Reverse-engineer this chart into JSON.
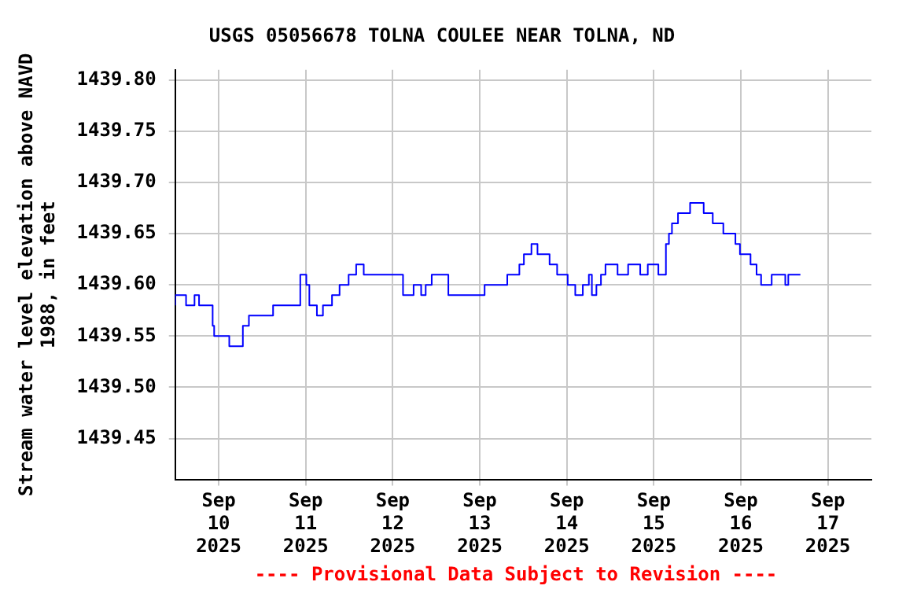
{
  "chart_data": {
    "type": "step",
    "title": "USGS 05056678 TOLNA COULEE NEAR TOLNA, ND",
    "ylabel": "Stream water level elevation above NAVD 1988, in feet",
    "annotations": [
      "---- Provisional Data Subject to Revision ----"
    ],
    "x": [
      "2025-09-09T12:00",
      "2025-09-09T15:00",
      "2025-09-09T17:20",
      "2025-09-09T18:35",
      "2025-09-09T22:20",
      "2025-09-09T22:45",
      "2025-09-10T02:55",
      "2025-09-10T06:40",
      "2025-09-10T08:20",
      "2025-09-10T15:00",
      "2025-09-10T22:30",
      "2025-09-11T00:10",
      "2025-09-11T01:00",
      "2025-09-11T03:05",
      "2025-09-11T04:45",
      "2025-09-11T07:15",
      "2025-09-11T09:20",
      "2025-09-11T11:50",
      "2025-09-11T13:55",
      "2025-09-11T16:00",
      "2025-09-12T02:50",
      "2025-09-12T05:45",
      "2025-09-12T07:50",
      "2025-09-12T09:05",
      "2025-09-12T10:45",
      "2025-09-12T15:20",
      "2025-09-13T01:20",
      "2025-09-13T07:35",
      "2025-09-13T10:55",
      "2025-09-13T12:10",
      "2025-09-13T14:15",
      "2025-09-13T15:55",
      "2025-09-13T19:15",
      "2025-09-13T21:20",
      "2025-09-14T00:15",
      "2025-09-14T02:20",
      "2025-09-14T04:25",
      "2025-09-14T06:05",
      "2025-09-14T06:55",
      "2025-09-14T08:10",
      "2025-09-14T09:25",
      "2025-09-14T10:40",
      "2025-09-14T14:00",
      "2025-09-14T16:55",
      "2025-09-14T20:15",
      "2025-09-14T22:20",
      "2025-09-15T01:15",
      "2025-09-15T03:20",
      "2025-09-15T04:10",
      "2025-09-15T05:00",
      "2025-09-15T06:40",
      "2025-09-15T10:00",
      "2025-09-15T13:45",
      "2025-09-15T16:15",
      "2025-09-15T19:10",
      "2025-09-15T22:30",
      "2025-09-15T23:45",
      "2025-09-16T02:40",
      "2025-09-16T04:20",
      "2025-09-16T05:35",
      "2025-09-16T08:30",
      "2025-09-16T12:15",
      "2025-09-16T13:05",
      "2025-09-16T15:10",
      "2025-09-16T16:25"
    ],
    "series": [
      {
        "color": "#0000ff",
        "values": [
          1439.58,
          1439.59,
          1439.58,
          1439.59,
          1439.58,
          1439.56,
          1439.55,
          1439.54,
          1439.56,
          1439.57,
          1439.58,
          1439.61,
          1439.6,
          1439.58,
          1439.57,
          1439.58,
          1439.59,
          1439.6,
          1439.61,
          1439.62,
          1439.61,
          1439.59,
          1439.6,
          1439.59,
          1439.6,
          1439.61,
          1439.59,
          1439.6,
          1439.61,
          1439.62,
          1439.63,
          1439.64,
          1439.63,
          1439.62,
          1439.61,
          1439.6,
          1439.59,
          1439.6,
          1439.61,
          1439.59,
          1439.6,
          1439.61,
          1439.62,
          1439.61,
          1439.62,
          1439.61,
          1439.62,
          1439.61,
          1439.64,
          1439.65,
          1439.66,
          1439.67,
          1439.68,
          1439.67,
          1439.66,
          1439.65,
          1439.64,
          1439.63,
          1439.62,
          1439.61,
          1439.6,
          1439.61,
          1439.6,
          1439.61,
          1439.61
        ]
      }
    ],
    "xlim": [
      "2025-09-09T12:00",
      "2025-09-17T12:00"
    ],
    "xticks": [
      {
        "value": "2025-09-10",
        "label": "Sep\n10\n2025"
      },
      {
        "value": "2025-09-11",
        "label": "Sep\n11\n2025"
      },
      {
        "value": "2025-09-12",
        "label": "Sep\n12\n2025"
      },
      {
        "value": "2025-09-13",
        "label": "Sep\n13\n2025"
      },
      {
        "value": "2025-09-14",
        "label": "Sep\n14\n2025"
      },
      {
        "value": "2025-09-15",
        "label": "Sep\n15\n2025"
      },
      {
        "value": "2025-09-16",
        "label": "Sep\n16\n2025"
      },
      {
        "value": "2025-09-17",
        "label": "Sep\n17\n2025"
      }
    ],
    "ylim": [
      1439.41,
      1439.81
    ],
    "yticks": [
      {
        "value": 1439.45,
        "label": "1439.45"
      },
      {
        "value": 1439.5,
        "label": "1439.50"
      },
      {
        "value": 1439.55,
        "label": "1439.55"
      },
      {
        "value": 1439.6,
        "label": "1439.60"
      },
      {
        "value": 1439.65,
        "label": "1439.65"
      },
      {
        "value": 1439.7,
        "label": "1439.70"
      },
      {
        "value": 1439.75,
        "label": "1439.75"
      },
      {
        "value": 1439.8,
        "label": "1439.80"
      }
    ],
    "grid": true,
    "legend": false,
    "marker": "none",
    "line_style": "solid"
  }
}
